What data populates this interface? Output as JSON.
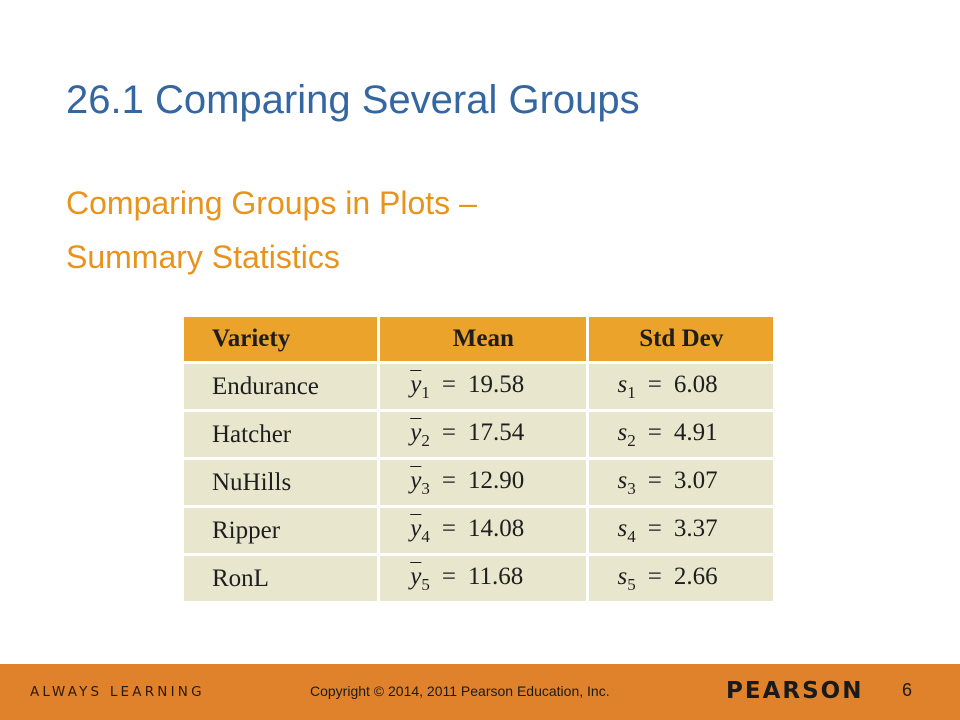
{
  "slide": {
    "title": "26.1 Comparing Several Groups",
    "subtitle_line1": "Comparing Groups in Plots –",
    "subtitle_line2": "Summary Statistics"
  },
  "table": {
    "headers": [
      "Variety",
      "Mean",
      "Std Dev"
    ],
    "rows": [
      {
        "variety": "Endurance",
        "mean_symbol": "y",
        "mean_sub": "1",
        "mean_value": "19.58",
        "sd_symbol": "s",
        "sd_sub": "1",
        "sd_value": "6.08"
      },
      {
        "variety": "Hatcher",
        "mean_symbol": "y",
        "mean_sub": "2",
        "mean_value": "17.54",
        "sd_symbol": "s",
        "sd_sub": "2",
        "sd_value": "4.91"
      },
      {
        "variety": "NuHills",
        "mean_symbol": "y",
        "mean_sub": "3",
        "mean_value": "12.90",
        "sd_symbol": "s",
        "sd_sub": "3",
        "sd_value": "3.07"
      },
      {
        "variety": "Ripper",
        "mean_symbol": "y",
        "mean_sub": "4",
        "mean_value": "14.08",
        "sd_symbol": "s",
        "sd_sub": "4",
        "sd_value": "3.37"
      },
      {
        "variety": "RonL",
        "mean_symbol": "y",
        "mean_sub": "5",
        "mean_value": "11.68",
        "sd_symbol": "s",
        "sd_sub": "5",
        "sd_value": "2.66"
      }
    ],
    "equals": "="
  },
  "footer": {
    "tagline": "ALWAYS LEARNING",
    "copyright": "Copyright © 2014, 2011 Pearson Education, Inc.",
    "brand": "PEARSON",
    "page_number": "6"
  },
  "colors": {
    "title": "#3466a1",
    "subtitle": "#e8931c",
    "header_fill": "#eba32b",
    "cell_fill": "#e8e6cd",
    "footer_bar": "#e0822b"
  }
}
